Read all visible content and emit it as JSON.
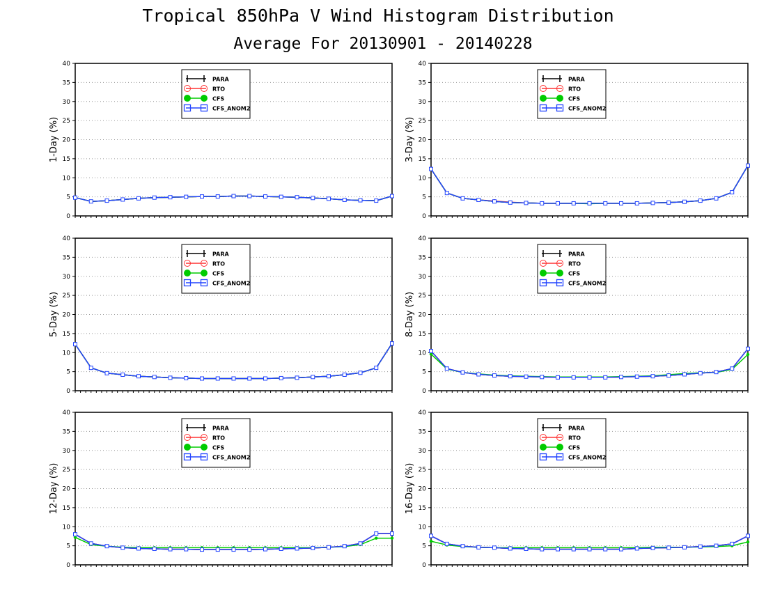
{
  "title": "Tropical 850hPa V Wind Histogram Distribution",
  "subtitle": "Average For 20130901 - 20140228",
  "colors": {
    "PARA": "#000000",
    "RTO": "#ff3333",
    "CFS": "#00cc00",
    "CFS_ANOM2": "#2244ff"
  },
  "legend_entries": [
    "PARA",
    "RTO",
    "CFS",
    "CFS_ANOM2"
  ],
  "chart_data": [
    {
      "type": "line",
      "ylabel": "1-Day (%)",
      "ylim": [
        0,
        40
      ],
      "yticks": [
        0,
        5,
        10,
        15,
        20,
        25,
        30,
        35,
        40
      ],
      "x": [
        1,
        2,
        3,
        4,
        5,
        6,
        7,
        8,
        9,
        10,
        11,
        12,
        13,
        14,
        15,
        16,
        17,
        18,
        19,
        20,
        21
      ],
      "legend_position": "top-left",
      "series": [
        {
          "name": "PARA",
          "values": [
            4.8,
            3.8,
            4.0,
            4.3,
            4.6,
            4.8,
            4.9,
            5.0,
            5.1,
            5.1,
            5.2,
            5.2,
            5.1,
            5.0,
            4.9,
            4.7,
            4.5,
            4.2,
            4.1,
            4.0,
            5.2
          ]
        },
        {
          "name": "RTO",
          "values": [
            4.8,
            3.8,
            4.0,
            4.3,
            4.6,
            4.8,
            4.9,
            5.0,
            5.1,
            5.1,
            5.2,
            5.2,
            5.1,
            5.0,
            4.9,
            4.7,
            4.5,
            4.2,
            4.1,
            4.0,
            5.2
          ]
        },
        {
          "name": "CFS",
          "values": [
            4.8,
            3.8,
            4.0,
            4.3,
            4.6,
            4.8,
            4.9,
            5.0,
            5.1,
            5.1,
            5.2,
            5.2,
            5.1,
            5.0,
            4.9,
            4.7,
            4.5,
            4.2,
            4.1,
            4.0,
            5.2
          ]
        },
        {
          "name": "CFS_ANOM2",
          "values": [
            4.8,
            3.8,
            4.0,
            4.3,
            4.6,
            4.8,
            4.9,
            5.0,
            5.1,
            5.1,
            5.2,
            5.2,
            5.1,
            5.0,
            4.9,
            4.7,
            4.5,
            4.2,
            4.1,
            4.0,
            5.2
          ]
        }
      ]
    },
    {
      "type": "line",
      "ylabel": "3-Day (%)",
      "ylim": [
        0,
        40
      ],
      "yticks": [
        0,
        5,
        10,
        15,
        20,
        25,
        30,
        35,
        40
      ],
      "x": [
        1,
        2,
        3,
        4,
        5,
        6,
        7,
        8,
        9,
        10,
        11,
        12,
        13,
        14,
        15,
        16,
        17,
        18,
        19,
        20,
        21
      ],
      "legend_position": "top-left",
      "series": [
        {
          "name": "PARA",
          "values": [
            12.3,
            6.0,
            4.6,
            4.2,
            3.8,
            3.5,
            3.4,
            3.3,
            3.3,
            3.3,
            3.3,
            3.3,
            3.3,
            3.3,
            3.4,
            3.5,
            3.7,
            4.0,
            4.6,
            6.2,
            13.2
          ]
        },
        {
          "name": "RTO",
          "values": [
            12.3,
            6.0,
            4.6,
            4.2,
            3.9,
            3.6,
            3.4,
            3.3,
            3.3,
            3.3,
            3.3,
            3.3,
            3.3,
            3.3,
            3.4,
            3.5,
            3.7,
            4.0,
            4.6,
            6.2,
            13.2
          ]
        },
        {
          "name": "CFS",
          "values": [
            12.3,
            6.0,
            4.6,
            4.2,
            3.8,
            3.5,
            3.4,
            3.3,
            3.3,
            3.3,
            3.2,
            3.3,
            3.3,
            3.3,
            3.4,
            3.5,
            3.7,
            4.0,
            4.6,
            6.2,
            13.2
          ]
        },
        {
          "name": "CFS_ANOM2",
          "values": [
            12.3,
            6.0,
            4.6,
            4.2,
            3.8,
            3.5,
            3.4,
            3.3,
            3.3,
            3.3,
            3.3,
            3.3,
            3.3,
            3.3,
            3.4,
            3.5,
            3.7,
            4.0,
            4.6,
            6.2,
            13.2
          ]
        }
      ]
    },
    {
      "type": "line",
      "ylabel": "5-Day (%)",
      "ylim": [
        0,
        40
      ],
      "yticks": [
        0,
        5,
        10,
        15,
        20,
        25,
        30,
        35,
        40
      ],
      "x": [
        1,
        2,
        3,
        4,
        5,
        6,
        7,
        8,
        9,
        10,
        11,
        12,
        13,
        14,
        15,
        16,
        17,
        18,
        19,
        20,
        21
      ],
      "legend_position": "top-left",
      "series": [
        {
          "name": "PARA",
          "values": [
            12.2,
            6.0,
            4.6,
            4.2,
            3.8,
            3.6,
            3.4,
            3.3,
            3.2,
            3.2,
            3.2,
            3.2,
            3.2,
            3.3,
            3.4,
            3.6,
            3.8,
            4.2,
            4.7,
            6.0,
            12.4
          ]
        },
        {
          "name": "RTO",
          "values": [
            12.2,
            6.0,
            4.6,
            4.2,
            3.8,
            3.6,
            3.4,
            3.3,
            3.2,
            3.2,
            3.2,
            3.2,
            3.2,
            3.3,
            3.4,
            3.6,
            3.8,
            4.2,
            4.7,
            6.0,
            12.4
          ]
        },
        {
          "name": "CFS",
          "values": [
            12.2,
            6.0,
            4.6,
            4.2,
            3.8,
            3.6,
            3.4,
            3.3,
            3.2,
            3.2,
            3.2,
            3.2,
            3.2,
            3.3,
            3.4,
            3.6,
            3.8,
            4.2,
            4.7,
            6.0,
            12.4
          ]
        },
        {
          "name": "CFS_ANOM2",
          "values": [
            12.2,
            6.0,
            4.6,
            4.2,
            3.8,
            3.6,
            3.4,
            3.3,
            3.2,
            3.2,
            3.2,
            3.2,
            3.2,
            3.3,
            3.4,
            3.6,
            3.8,
            4.2,
            4.7,
            6.0,
            12.4
          ]
        }
      ]
    },
    {
      "type": "line",
      "ylabel": "8-Day (%)",
      "ylim": [
        0,
        40
      ],
      "yticks": [
        0,
        5,
        10,
        15,
        20,
        25,
        30,
        35,
        40
      ],
      "x": [
        1,
        2,
        3,
        4,
        5,
        6,
        7,
        8,
        9,
        10,
        11,
        12,
        13,
        14,
        15,
        16,
        17,
        18,
        19,
        20,
        21
      ],
      "legend_position": "top-left",
      "series": [
        {
          "name": "PARA",
          "values": [
            10.4,
            5.8,
            4.8,
            4.3,
            4.0,
            3.8,
            3.7,
            3.6,
            3.5,
            3.5,
            3.5,
            3.5,
            3.6,
            3.7,
            3.8,
            4.0,
            4.3,
            4.6,
            4.9,
            5.8,
            11.0
          ]
        },
        {
          "name": "RTO",
          "values": [
            10.4,
            5.8,
            4.8,
            4.3,
            4.0,
            3.8,
            3.7,
            3.6,
            3.5,
            3.5,
            3.5,
            3.5,
            3.6,
            3.7,
            3.8,
            4.0,
            4.3,
            4.6,
            4.9,
            5.8,
            11.0
          ]
        },
        {
          "name": "CFS",
          "values": [
            9.6,
            5.7,
            4.8,
            4.4,
            4.1,
            3.9,
            3.8,
            3.7,
            3.6,
            3.6,
            3.6,
            3.6,
            3.7,
            3.8,
            3.9,
            4.2,
            4.5,
            4.7,
            4.8,
            5.6,
            9.5
          ]
        },
        {
          "name": "CFS_ANOM2",
          "values": [
            10.4,
            5.8,
            4.8,
            4.3,
            4.0,
            3.8,
            3.7,
            3.6,
            3.5,
            3.5,
            3.5,
            3.5,
            3.6,
            3.7,
            3.8,
            4.0,
            4.3,
            4.6,
            4.9,
            5.8,
            11.0
          ]
        }
      ]
    },
    {
      "type": "line",
      "ylabel": "12-Day (%)",
      "ylim": [
        0,
        40
      ],
      "yticks": [
        0,
        5,
        10,
        15,
        20,
        25,
        30,
        35,
        40
      ],
      "x": [
        1,
        2,
        3,
        4,
        5,
        6,
        7,
        8,
        9,
        10,
        11,
        12,
        13,
        14,
        15,
        16,
        17,
        18,
        19,
        20,
        21
      ],
      "legend_position": "top-left",
      "series": [
        {
          "name": "PARA",
          "values": [
            8.0,
            5.6,
            4.9,
            4.5,
            4.3,
            4.2,
            4.1,
            4.1,
            4.0,
            4.0,
            4.0,
            4.0,
            4.1,
            4.2,
            4.3,
            4.4,
            4.6,
            4.9,
            5.6,
            8.2,
            8.2
          ]
        },
        {
          "name": "RTO",
          "values": [
            8.0,
            5.6,
            4.9,
            4.5,
            4.3,
            4.2,
            4.1,
            4.1,
            4.0,
            4.0,
            4.0,
            4.0,
            4.1,
            4.2,
            4.3,
            4.4,
            4.6,
            4.9,
            5.6,
            8.2,
            8.2
          ]
        },
        {
          "name": "CFS",
          "values": [
            7.2,
            5.3,
            4.9,
            4.6,
            4.5,
            4.5,
            4.5,
            4.5,
            4.5,
            4.5,
            4.5,
            4.5,
            4.5,
            4.5,
            4.5,
            4.5,
            4.6,
            4.8,
            5.3,
            7.0,
            7.0
          ]
        },
        {
          "name": "CFS_ANOM2",
          "values": [
            8.0,
            5.6,
            4.9,
            4.5,
            4.3,
            4.2,
            4.1,
            4.1,
            4.0,
            4.0,
            4.0,
            4.0,
            4.1,
            4.2,
            4.3,
            4.4,
            4.6,
            4.9,
            5.6,
            8.2,
            8.2
          ]
        }
      ]
    },
    {
      "type": "line",
      "ylabel": "16-Day (%)",
      "ylim": [
        0,
        40
      ],
      "yticks": [
        0,
        5,
        10,
        15,
        20,
        25,
        30,
        35,
        40
      ],
      "x": [
        1,
        2,
        3,
        4,
        5,
        6,
        7,
        8,
        9,
        10,
        11,
        12,
        13,
        14,
        15,
        16,
        17,
        18,
        19,
        20,
        21
      ],
      "legend_position": "top-left",
      "series": [
        {
          "name": "PARA",
          "values": [
            7.6,
            5.5,
            4.9,
            4.6,
            4.5,
            4.3,
            4.2,
            4.1,
            4.1,
            4.1,
            4.1,
            4.1,
            4.1,
            4.3,
            4.4,
            4.5,
            4.6,
            4.8,
            5.0,
            5.5,
            7.6
          ]
        },
        {
          "name": "RTO",
          "values": [
            7.6,
            5.5,
            4.9,
            4.6,
            4.5,
            4.3,
            4.2,
            4.1,
            4.1,
            4.1,
            4.1,
            4.1,
            4.1,
            4.3,
            4.4,
            4.5,
            4.6,
            4.8,
            5.0,
            5.5,
            7.6
          ]
        },
        {
          "name": "CFS",
          "values": [
            6.2,
            5.2,
            4.8,
            4.6,
            4.5,
            4.5,
            4.5,
            4.5,
            4.5,
            4.5,
            4.5,
            4.5,
            4.5,
            4.5,
            4.6,
            4.6,
            4.6,
            4.7,
            4.8,
            5.0,
            6.0
          ]
        },
        {
          "name": "CFS_ANOM2",
          "values": [
            7.6,
            5.5,
            4.9,
            4.6,
            4.5,
            4.3,
            4.2,
            4.1,
            4.1,
            4.1,
            4.1,
            4.1,
            4.1,
            4.3,
            4.4,
            4.5,
            4.6,
            4.8,
            5.0,
            5.5,
            7.6
          ]
        }
      ]
    }
  ]
}
